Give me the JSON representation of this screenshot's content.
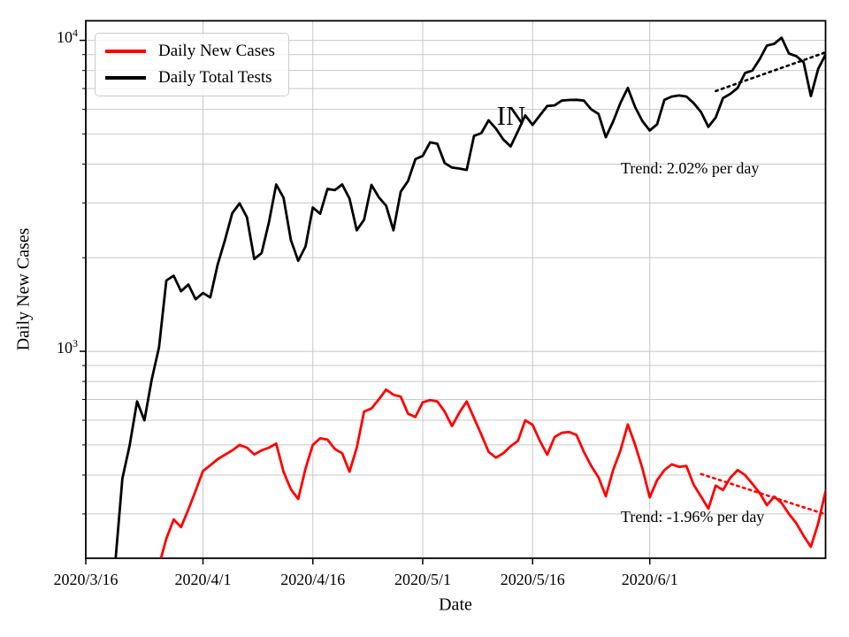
{
  "chart_data": {
    "type": "line",
    "state_label": "IN",
    "xlabel": "Date",
    "ylabel": "Daily New Cases",
    "grid": true,
    "legend_position": "upper left",
    "colors": {
      "cases": "#ff0000",
      "tests": "#000000",
      "grid": "#c8c8c8",
      "axis": "#000000",
      "background": "#ffffff"
    },
    "x_axis": {
      "xlim": [
        "2020/3/16",
        "2020/6/25"
      ],
      "ticks": [
        "2020/3/16",
        "2020/4/1",
        "2020/4/16",
        "2020/5/1",
        "2020/5/16",
        "2020/6/1"
      ]
    },
    "y_axis": {
      "scale": "log",
      "ylim": [
        216,
        11560
      ],
      "ticks": [
        {
          "base": "10",
          "exp": "3",
          "value": 1000
        },
        {
          "base": "10",
          "exp": "4",
          "value": 10000
        }
      ],
      "minor_gridlines": [
        300,
        400,
        500,
        600,
        700,
        800,
        900,
        2000,
        3000,
        4000,
        5000,
        6000,
        7000,
        8000,
        9000
      ]
    },
    "series": [
      {
        "name": "Daily New Cases",
        "color": "#ff0000",
        "start_date": "2020/3/26",
        "end_date": "2020/6/25",
        "step_days": 1,
        "values": [
          205,
          250,
          288,
          272,
          310,
          356,
          412,
          430,
          450,
          465,
          480,
          500,
          490,
          466,
          480,
          490,
          505,
          410,
          360,
          335,
          420,
          500,
          525,
          520,
          485,
          470,
          410,
          490,
          640,
          655,
          700,
          753,
          725,
          715,
          630,
          615,
          685,
          697,
          690,
          640,
          575,
          635,
          690,
          610,
          540,
          475,
          455,
          470,
          495,
          515,
          600,
          580,
          515,
          465,
          530,
          547,
          550,
          538,
          475,
          428,
          393,
          342,
          415,
          480,
          582,
          500,
          420,
          339,
          385,
          415,
          433,
          425,
          428,
          372,
          341,
          312,
          370,
          358,
          392,
          415,
          400,
          375,
          350,
          320,
          341,
          325,
          300,
          280,
          255,
          235,
          280,
          355
        ]
      },
      {
        "name": "Daily Total Tests",
        "color": "#000000",
        "start_date": "2020/3/20",
        "end_date": "2020/6/25",
        "step_days": 1,
        "values": [
          205,
          390,
          500,
          690,
          600,
          810,
          1030,
          1690,
          1750,
          1560,
          1640,
          1470,
          1540,
          1490,
          1900,
          2280,
          2780,
          2990,
          2700,
          1980,
          2070,
          2600,
          3440,
          3120,
          2280,
          1955,
          2175,
          2900,
          2770,
          3330,
          3300,
          3440,
          3100,
          2450,
          2650,
          3430,
          3130,
          2940,
          2450,
          3260,
          3530,
          4150,
          4250,
          4700,
          4650,
          4030,
          3900,
          3870,
          3830,
          4930,
          5030,
          5530,
          5200,
          4800,
          4560,
          5100,
          5740,
          5350,
          5740,
          6150,
          6180,
          6400,
          6430,
          6440,
          6400,
          6000,
          5800,
          4880,
          5480,
          6300,
          7030,
          6100,
          5500,
          5130,
          5370,
          6440,
          6600,
          6650,
          6600,
          6280,
          5880,
          5270,
          5650,
          6520,
          6730,
          7030,
          7850,
          8000,
          8700,
          9620,
          9750,
          10200,
          9070,
          8900,
          8500,
          6620,
          8100,
          9000
        ]
      }
    ],
    "trend_lines": [
      {
        "label": "Trend: 2.02% per day",
        "rate_percent_per_day": 2.02,
        "series": "Daily Total Tests",
        "color": "#000000",
        "start_date": "2020/6/10",
        "start_value": 6870,
        "end_date": "2020/6/25",
        "end_value": 9150
      },
      {
        "label": "Trend: -1.96% per day",
        "rate_percent_per_day": -1.96,
        "series": "Daily New Cases",
        "color": "#ff0000",
        "start_date": "2020/6/8",
        "start_value": 403,
        "end_date": "2020/6/25",
        "end_value": 299
      }
    ]
  }
}
